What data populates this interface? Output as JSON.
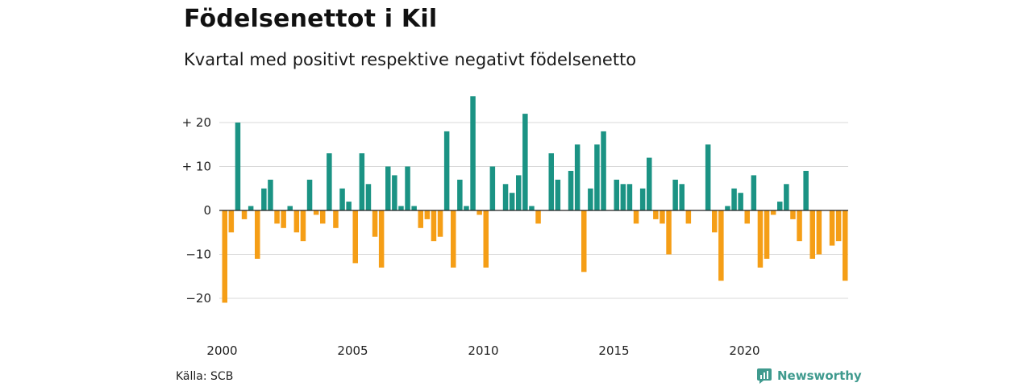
{
  "title": "Födelsenettot i Kil",
  "subtitle": "Kvartal med positivt respektive negativt födelsenetto",
  "source": "Källa: SCB",
  "brand": "Newsworthy",
  "colors": {
    "positive": "#1b9384",
    "negative": "#f59e16",
    "grid": "#d9d9d9",
    "zero_line": "#222222",
    "brand": "#3f9a8e"
  },
  "chart_data": {
    "type": "bar",
    "title": "",
    "xlabel": "",
    "ylabel": "",
    "x_start_year": 2000,
    "periods_per_year": 4,
    "ylim": [
      -24,
      27
    ],
    "y_ticks": [
      20,
      10,
      0,
      -10,
      -20
    ],
    "y_tick_labels": [
      "+ 20",
      "+ 10",
      "0",
      "−10",
      "−20"
    ],
    "x_tick_labels": [
      "2000",
      "2005",
      "2010",
      "2015",
      "2020"
    ],
    "grid": true,
    "values": [
      -21,
      -5,
      20,
      -2,
      1,
      -11,
      5,
      7,
      -3,
      -4,
      1,
      -5,
      -7,
      7,
      -1,
      -3,
      13,
      -4,
      5,
      2,
      -12,
      13,
      6,
      -6,
      -13,
      10,
      8,
      1,
      10,
      1,
      -4,
      -2,
      -7,
      -6,
      18,
      -13,
      7,
      1,
      26,
      -1,
      -13,
      10,
      0,
      6,
      4,
      8,
      22,
      1,
      -3,
      0,
      13,
      7,
      0,
      9,
      15,
      -14,
      5,
      15,
      18,
      0,
      7,
      6,
      6,
      -3,
      5,
      12,
      -2,
      -3,
      -10,
      7,
      6,
      -3,
      0,
      0,
      15,
      -5,
      -16,
      1,
      5,
      4,
      -3,
      8,
      -13,
      -11,
      -1,
      2,
      6,
      -2,
      -7,
      9,
      -11,
      -10,
      0,
      -8,
      -7,
      -16
    ]
  }
}
